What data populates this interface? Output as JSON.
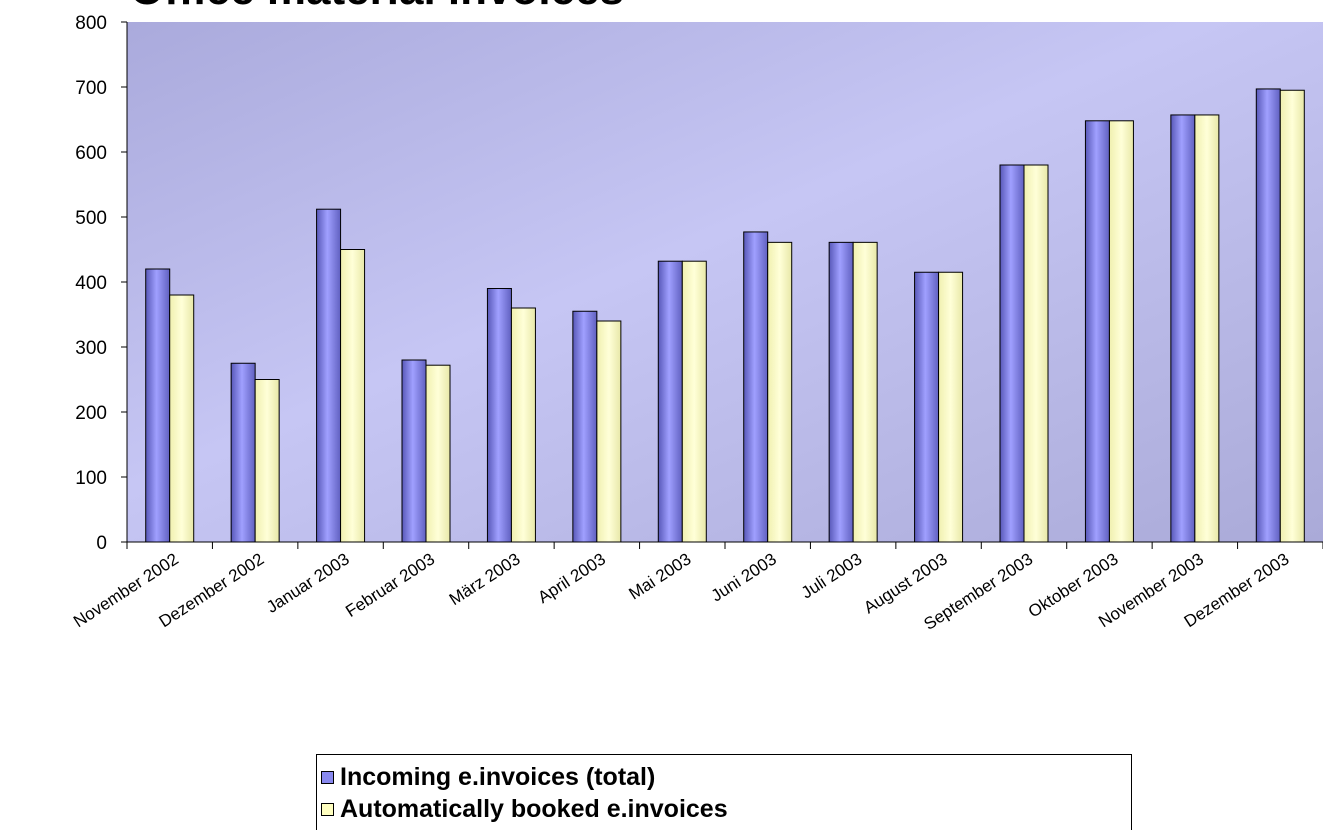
{
  "chart_data": {
    "type": "bar",
    "title": "Office material invoices",
    "categories": [
      "November 2002",
      "Dezember 2002",
      "Januar 2003",
      "Februar 2003",
      "März 2003",
      "April 2003",
      "Mai 2003",
      "Juni 2003",
      "Juli 2003",
      "August 2003",
      "September 2003",
      "Oktober 2003",
      "November 2003",
      "Dezember 2003"
    ],
    "series": [
      {
        "name": "Incoming e.invoices (total)",
        "color": "#8080e0",
        "values": [
          420,
          275,
          512,
          280,
          390,
          355,
          432,
          477,
          461,
          415,
          580,
          648,
          657,
          697
        ]
      },
      {
        "name": "Automatically booked e.invoices",
        "color": "#ffffc0",
        "values": [
          380,
          250,
          450,
          272,
          360,
          340,
          432,
          461,
          461,
          415,
          580,
          648,
          657,
          695
        ]
      }
    ],
    "ylim": [
      0,
      800
    ],
    "yticks": [
      0,
      100,
      200,
      300,
      400,
      500,
      600,
      700,
      800
    ],
    "xlabel": "",
    "ylabel": "",
    "grid": false,
    "legend": "bottom"
  }
}
